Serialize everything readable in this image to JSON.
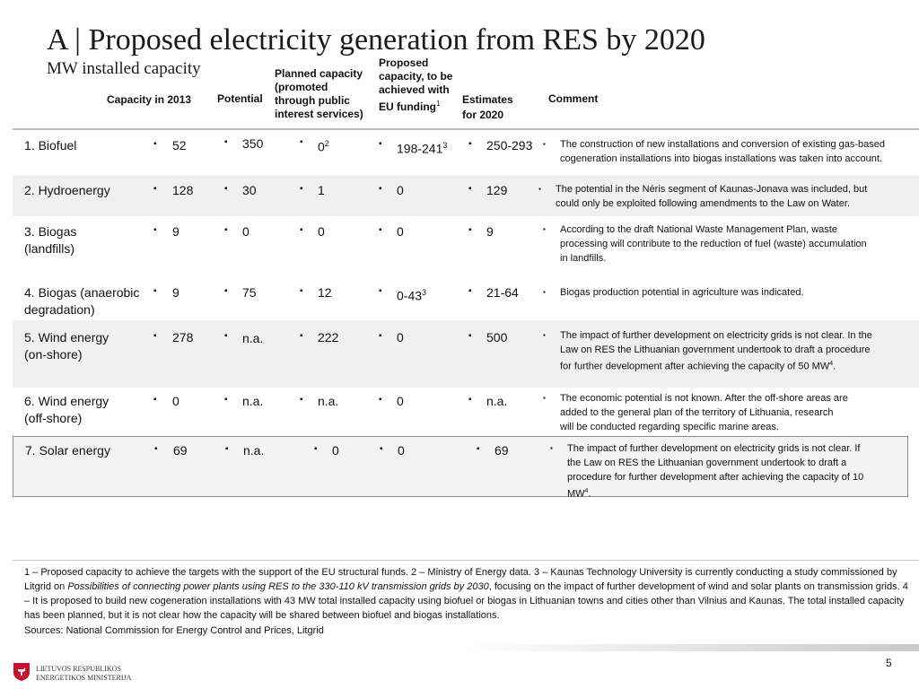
{
  "title": "A | Proposed electricity generation from RES by 2020",
  "subtitle": "MW installed capacity",
  "headers": {
    "capacity2013": "Capacity in 2013",
    "potential": "Potential",
    "planned": [
      "Planned capacity",
      "(promoted",
      "through public",
      "interest services)"
    ],
    "proposed": [
      "Proposed",
      "capacity, to be",
      "achieved with",
      "EU funding"
    ],
    "proposed_sup": "1",
    "estimates": [
      "Estimates",
      "for 2020"
    ],
    "comment": "Comment"
  },
  "bullet": "▪",
  "rows": [
    {
      "name": "1. Biofuel",
      "cap2013": "52",
      "potential": "350",
      "planned": "0",
      "planned_sup": "2",
      "proposed": "198-241",
      "proposed_sup": "3",
      "estimates": "250-293",
      "comment": [
        "The construction of new installations and conversion of existing gas-based",
        "cogeneration installations into biogas installations was taken into account."
      ]
    },
    {
      "name": "2. Hydroenergy",
      "cap2013": "128",
      "potential": "30",
      "planned": "1",
      "planned_sup": "",
      "proposed": "0",
      "proposed_sup": "",
      "estimates": "129",
      "comment": [
        "The potential in the Nėris segment of Kaunas-Jonava was included, but",
        "could only be exploited following  amendments to the Law on Water."
      ]
    },
    {
      "name": "3. Biogas (landfills)",
      "cap2013": "9",
      "potential": "0",
      "planned": "0",
      "planned_sup": "",
      "proposed": "0",
      "proposed_sup": "",
      "estimates": "9",
      "comment": [
        "According to the draft National Waste Management Plan, waste",
        "processing will contribute to the reduction of fuel (waste) accumulation",
        "in landfills."
      ]
    },
    {
      "name": "4. Biogas (anaerobic degradation)",
      "cap2013": "9",
      "potential": "75",
      "planned": "12",
      "planned_sup": "",
      "proposed": "0-43",
      "proposed_sup": "3",
      "estimates": "21-64",
      "comment": [
        "Biogas production potential in agriculture was indicated."
      ]
    },
    {
      "name": "5. Wind energy (on-shore)",
      "cap2013": "278",
      "potential": "n.a.",
      "planned": "222",
      "planned_sup": "",
      "proposed": "0",
      "proposed_sup": "",
      "estimates": "500",
      "comment": [
        "The impact of further development on electricity grids is not clear. In the",
        "Law on RES the Lithuanian government undertook to draft a procedure",
        "for further development after achieving the capacity of 50 MW"
      ],
      "comment_sup": "4",
      "comment_end": "."
    },
    {
      "name": "6. Wind energy (off-shore)",
      "cap2013": "0",
      "potential": "n.a.",
      "planned": "n.a.",
      "planned_sup": "",
      "proposed": "0",
      "proposed_sup": "",
      "estimates": "n.a.",
      "comment": [
        "The economic potential is not known. After the off-shore areas are",
        "added to the general plan of the territory of Lithuania,  research",
        "will be conducted regarding specific marine areas."
      ]
    },
    {
      "name": "7. Solar energy",
      "cap2013": "69",
      "potential": "n.a.",
      "planned": "0",
      "planned_sup": "",
      "proposed": "0",
      "proposed_sup": "",
      "estimates": "69",
      "comment": [
        "The impact of further development on electricity grids is not clear. If",
        "the Law on RES the Lithuanian government undertook to draft a",
        "procedure for further development after achieving the capacity of 10",
        "MW"
      ],
      "comment_sup": "4",
      "comment_end": "."
    }
  ],
  "footnote": {
    "part1": "1 – Proposed capacity to achieve the targets with the support of the EU structural funds. 2 – Ministry of Energy data. 3 – Kaunas Technology University is currently conducting a study commissioned by Litgrid  on ",
    "italic": "Possibilities of connecting power plants using RES to the 330-110 kV transmission grids by 2030",
    "part2": ", focusing on the impact of further development of wind and solar plants on transmission grids. 4 – It is proposed to build new cogeneration installations with 43 MW total installed capacity using biofuel or biogas in Lithuanian towns and cities other than Vilnius and Kaunas. The total installed capacity has been planned, but it is not clear how the capacity will be shared between biofuel and biogas installations."
  },
  "sources": "Sources: National Commission for Energy Control and Prices, Litgrid",
  "logo_text": [
    "LIETUVOS RESPUBLIKOS",
    "ENERGETIKOS MINISTERIJA"
  ],
  "page_number": "5",
  "colors": {
    "logo_red": "#c8102e",
    "shade": "#f0f0f0"
  }
}
